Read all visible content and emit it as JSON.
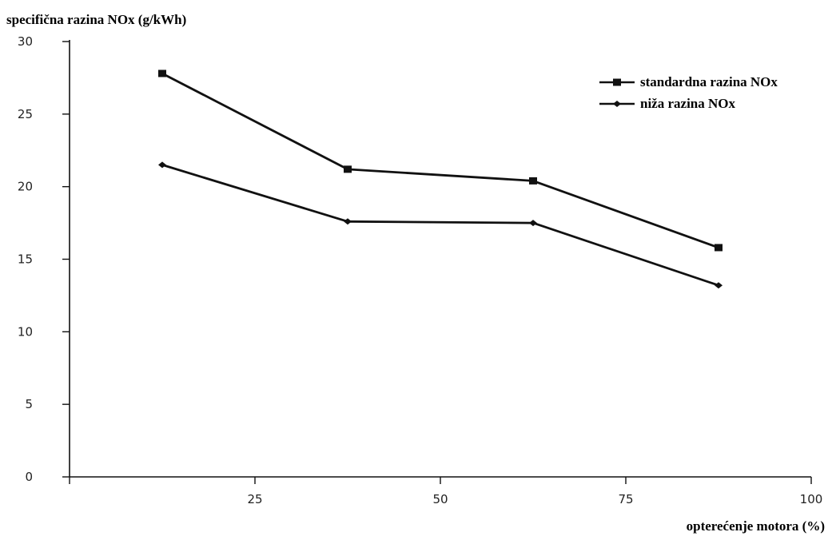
{
  "chart_data": {
    "type": "line",
    "ylabel": "specifična razina NOx (g/kWh)",
    "xlabel": "opterećenje motora (%)",
    "xlim": [
      0,
      100
    ],
    "ylim": [
      0,
      30
    ],
    "x_ticks": [
      "25",
      "50",
      "75",
      "100"
    ],
    "y_ticks": [
      "0",
      "5",
      "10",
      "15",
      "20",
      "25",
      "30"
    ],
    "grid": false,
    "legend_position": "top-right",
    "series": [
      {
        "name": "standardna razina NOx",
        "marker": "square",
        "x": [
          12.5,
          37.5,
          62.5,
          87.5
        ],
        "y": [
          27.8,
          21.2,
          20.4,
          15.8
        ]
      },
      {
        "name": "niža razina NOx",
        "marker": "diamond",
        "x": [
          12.5,
          37.5,
          62.5,
          87.5
        ],
        "y": [
          21.5,
          17.6,
          17.5,
          13.2
        ]
      }
    ]
  }
}
